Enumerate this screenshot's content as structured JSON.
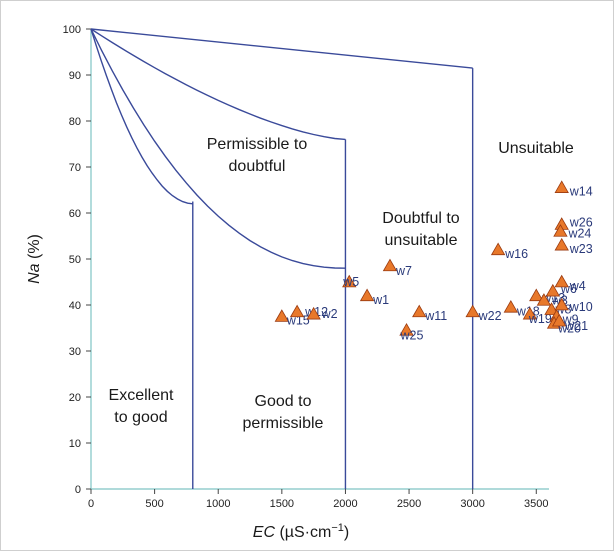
{
  "chart_data": {
    "type": "scatter",
    "xlabel": "EC (µS·cm⁻¹)",
    "xlabel_parts": {
      "var": "EC",
      "unit": " (µS·cm",
      "sup": "−1",
      "close": ")"
    },
    "ylabel": "Na (%)",
    "ylabel_parts": {
      "var": "Na",
      "unit": " (%)"
    },
    "xlim": [
      0,
      3600
    ],
    "ylim": [
      0,
      100
    ],
    "xticks": [
      0,
      500,
      1000,
      1500,
      2000,
      2500,
      3000,
      3500
    ],
    "yticks": [
      0,
      10,
      20,
      30,
      40,
      50,
      60,
      70,
      80,
      90,
      100
    ],
    "grid": false,
    "marker_color": "#e8782a",
    "line_color": "#3a4a9a",
    "boundaries": [
      {
        "name": "b1",
        "points": [
          [
            0,
            100
          ],
          [
            100,
            95
          ],
          [
            200,
            90
          ],
          [
            300,
            85
          ],
          [
            400,
            80
          ],
          [
            500,
            75
          ],
          [
            600,
            70
          ],
          [
            700,
            66
          ],
          [
            800,
            63
          ]
        ]
      },
      {
        "name": "b2",
        "points": [
          [
            0,
            100
          ],
          [
            200,
            93
          ],
          [
            400,
            87
          ],
          [
            600,
            82
          ],
          [
            800,
            77
          ],
          [
            1000,
            73
          ],
          [
            1200,
            70
          ],
          [
            1400,
            67
          ],
          [
            1600,
            64
          ],
          [
            1800,
            62
          ],
          [
            2000,
            60
          ]
        ]
      },
      {
        "name": "b3",
        "points": [
          [
            0,
            100
          ],
          [
            500,
            88
          ],
          [
            1000,
            80
          ],
          [
            1500,
            70
          ],
          [
            2000,
            75
          ]
        ]
      },
      {
        "name": "b4",
        "points": [
          [
            0,
            100
          ],
          [
            1000,
            97
          ],
          [
            2000,
            94
          ],
          [
            3000,
            91
          ]
        ]
      },
      {
        "name": "v1",
        "points": [
          [
            800,
            62
          ],
          [
            800,
            0
          ]
        ]
      },
      {
        "name": "v2",
        "points": [
          [
            2000,
            76
          ],
          [
            2000,
            0
          ]
        ]
      },
      {
        "name": "v3",
        "points": [
          [
            3000,
            91.5
          ],
          [
            3000,
            0
          ]
        ]
      }
    ],
    "zones": [
      {
        "lines": [
          "Permissible to",
          "doubtful"
        ]
      },
      {
        "lines": [
          "Unsuitable"
        ]
      },
      {
        "lines": [
          "Doubtful to",
          "unsuitable"
        ]
      },
      {
        "lines": [
          "Excellent",
          "to good"
        ]
      },
      {
        "lines": [
          "Good to",
          "permissible"
        ]
      }
    ],
    "points": [
      {
        "label": "w15",
        "x": 1500,
        "y": 37.5
      },
      {
        "label": "w12",
        "x": 1620,
        "y": 38.5
      },
      {
        "label": "w2",
        "x": 1750,
        "y": 38
      },
      {
        "label": "w5",
        "x": 2030,
        "y": 45
      },
      {
        "label": "w1",
        "x": 2170,
        "y": 42
      },
      {
        "label": "w7",
        "x": 2350,
        "y": 48.5
      },
      {
        "label": "w25",
        "x": 2480,
        "y": 34.5
      },
      {
        "label": "w11",
        "x": 2580,
        "y": 38.5
      },
      {
        "label": "w22",
        "x": 3000,
        "y": 38.5
      },
      {
        "label": "w16",
        "x": 3200,
        "y": 52
      },
      {
        "label": "w18",
        "x": 3300,
        "y": 39.5
      },
      {
        "label": "w19",
        "x": 3450,
        "y": 38
      },
      {
        "label": "w13",
        "x": 3500,
        "y": 42
      },
      {
        "label": "w3",
        "x": 3560,
        "y": 41
      },
      {
        "label": "w6",
        "x": 3630,
        "y": 43
      },
      {
        "label": "w8",
        "x": 3620,
        "y": 39
      },
      {
        "label": "w9",
        "x": 3660,
        "y": 37.5
      },
      {
        "label": "w20",
        "x": 3640,
        "y": 36
      },
      {
        "label": "w21",
        "x": 3680,
        "y": 36.5
      },
      {
        "label": "w14",
        "x": 3700,
        "y": 65.5
      },
      {
        "label": "w26",
        "x": 3700,
        "y": 57.5
      },
      {
        "label": "w24",
        "x": 3690,
        "y": 56
      },
      {
        "label": "w23",
        "x": 3700,
        "y": 53
      },
      {
        "label": "w4",
        "x": 3700,
        "y": 45
      },
      {
        "label": "w10",
        "x": 3700,
        "y": 40
      }
    ]
  }
}
